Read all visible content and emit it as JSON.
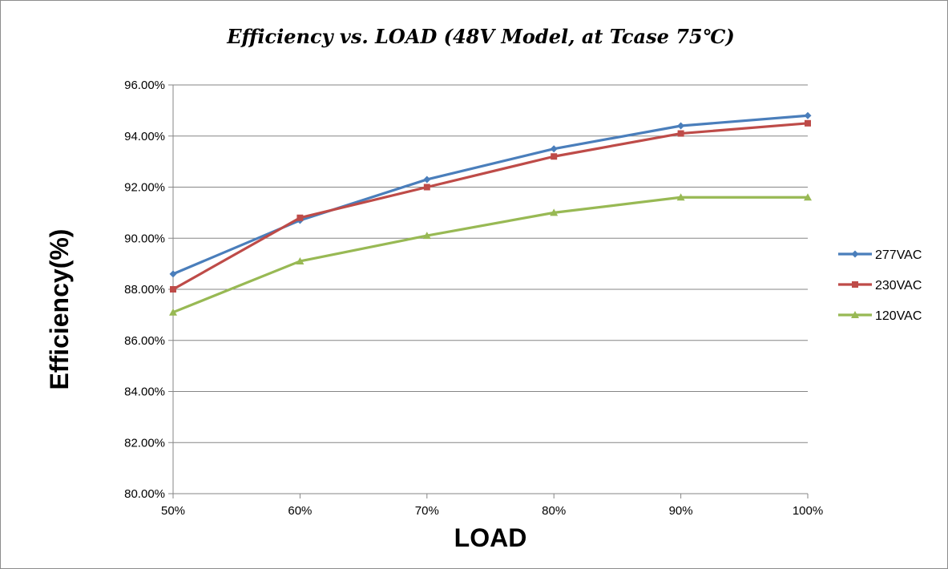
{
  "chart_data": {
    "type": "line",
    "title": "Efficiency vs. LOAD (48V  Model, at Tcase 75℃)",
    "xlabel": "LOAD",
    "ylabel": "Efficiency(%)",
    "categories": [
      "50%",
      "60%",
      "70%",
      "80%",
      "90%",
      "100%"
    ],
    "y_ticks": [
      "80.00%",
      "82.00%",
      "84.00%",
      "86.00%",
      "88.00%",
      "90.00%",
      "92.00%",
      "94.00%",
      "96.00%"
    ],
    "ylim": [
      80,
      96
    ],
    "grid": true,
    "legend_position": "right",
    "series": [
      {
        "name": "277VAC",
        "marker": "diamond",
        "color": "#4a7ebb",
        "values": [
          88.6,
          90.7,
          92.3,
          93.5,
          94.4,
          94.8
        ]
      },
      {
        "name": "230VAC",
        "marker": "square",
        "color": "#be4b48",
        "values": [
          88.0,
          90.8,
          92.0,
          93.2,
          94.1,
          94.5
        ]
      },
      {
        "name": "120VAC",
        "marker": "triangle",
        "color": "#98b954",
        "values": [
          87.1,
          89.1,
          90.1,
          91.0,
          91.6,
          91.6
        ]
      }
    ]
  }
}
